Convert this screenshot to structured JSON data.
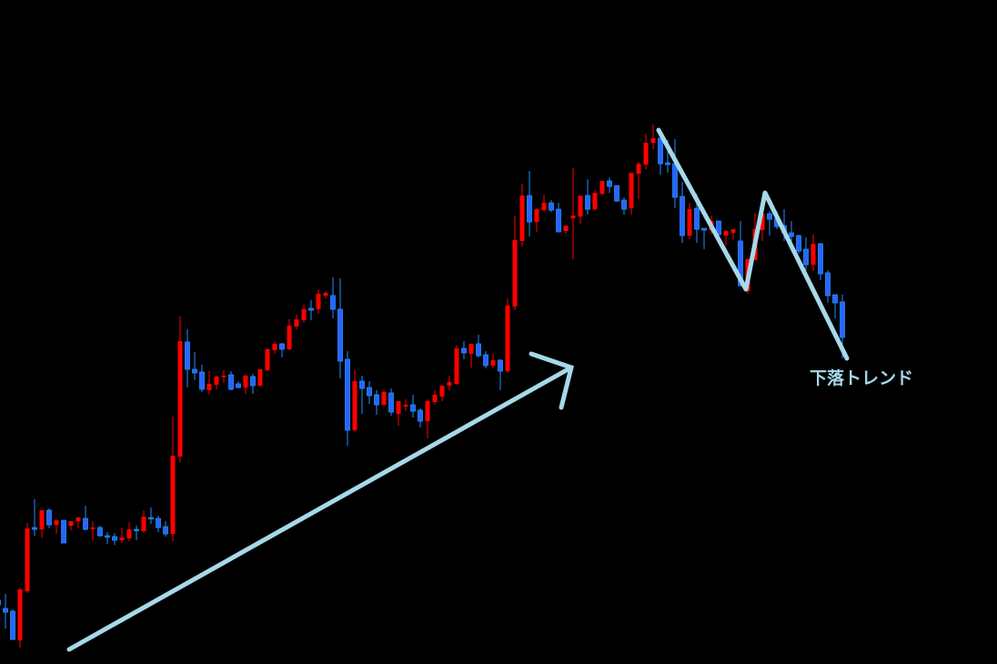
{
  "chart_data": {
    "type": "candlestick",
    "title": "",
    "xlabel": "",
    "ylabel": "",
    "grid": false,
    "background": "#000000",
    "colors": {
      "up": "#ff0000",
      "down_fill": "#2a63ff",
      "down_edge": "#1e90ff",
      "annotation": "#a6d9e8"
    },
    "ohlc_fields": [
      "open",
      "high",
      "low",
      "close"
    ],
    "candles": [
      [
        70,
        77,
        60,
        65
      ],
      [
        61,
        77,
        39,
        57
      ],
      [
        58,
        60,
        27,
        27
      ],
      [
        26,
        84,
        18,
        82
      ],
      [
        80,
        155,
        78,
        149
      ],
      [
        150,
        181,
        141,
        148
      ],
      [
        148,
        169,
        139,
        169
      ],
      [
        169,
        171,
        149,
        153
      ],
      [
        153,
        158,
        143,
        158
      ],
      [
        158,
        158,
        133,
        133
      ],
      [
        152,
        157,
        147,
        157
      ],
      [
        157,
        162,
        149,
        161
      ],
      [
        160,
        174,
        147,
        148
      ],
      [
        149,
        157,
        136,
        150
      ],
      [
        150,
        152,
        140,
        141
      ],
      [
        141,
        145,
        132,
        140
      ],
      [
        140,
        144,
        131,
        136
      ],
      [
        136,
        150,
        133,
        139
      ],
      [
        138,
        156,
        135,
        148
      ],
      [
        148,
        152,
        136,
        147
      ],
      [
        146,
        169,
        144,
        162
      ],
      [
        161,
        172,
        154,
        160
      ],
      [
        160,
        163,
        145,
        150
      ],
      [
        151,
        157,
        140,
        143
      ],
      [
        143,
        272,
        135,
        229
      ],
      [
        228,
        382,
        222,
        355
      ],
      [
        354,
        368,
        304,
        324
      ],
      [
        324,
        343,
        312,
        320
      ],
      [
        321,
        329,
        299,
        302
      ],
      [
        301,
        322,
        296,
        308
      ],
      [
        307,
        317,
        302,
        316
      ],
      [
        316,
        323,
        309,
        317
      ],
      [
        318,
        322,
        301,
        302
      ],
      [
        308,
        311,
        303,
        304
      ],
      [
        304,
        318,
        297,
        317
      ],
      [
        316,
        319,
        297,
        306
      ],
      [
        306,
        324,
        305,
        324
      ],
      [
        323,
        347,
        322,
        346
      ],
      [
        345,
        355,
        341,
        352
      ],
      [
        352,
        353,
        337,
        346
      ],
      [
        346,
        379,
        345,
        372
      ],
      [
        371,
        384,
        368,
        379
      ],
      [
        378,
        395,
        375,
        390
      ],
      [
        391,
        400,
        378,
        389
      ],
      [
        390,
        412,
        385,
        407
      ],
      [
        405,
        410,
        402,
        408
      ],
      [
        405,
        425,
        380,
        390
      ],
      [
        390,
        424,
        314,
        333
      ],
      [
        335,
        344,
        240,
        257
      ],
      [
        257,
        323,
        255,
        311
      ],
      [
        311,
        317,
        275,
        303
      ],
      [
        304,
        311,
        286,
        295
      ],
      [
        296,
        301,
        274,
        285
      ],
      [
        285,
        301,
        284,
        299
      ],
      [
        298,
        303,
        273,
        277
      ],
      [
        275,
        289,
        262,
        289
      ],
      [
        283,
        291,
        278,
        285
      ],
      [
        285,
        296,
        271,
        278
      ],
      [
        279,
        281,
        260,
        267
      ],
      [
        267,
        291,
        248,
        289
      ],
      [
        288,
        301,
        285,
        296
      ],
      [
        294,
        306,
        289,
        306
      ],
      [
        306,
        317,
        301,
        310
      ],
      [
        308,
        350,
        307,
        347
      ],
      [
        347,
        355,
        335,
        342
      ],
      [
        341,
        352,
        326,
        352
      ],
      [
        352,
        362,
        337,
        339
      ],
      [
        340,
        344,
        325,
        328
      ],
      [
        328,
        341,
        325,
        334
      ],
      [
        334,
        335,
        301,
        322
      ],
      [
        322,
        402,
        320,
        394
      ],
      [
        393,
        493,
        389,
        466
      ],
      [
        465,
        528,
        459,
        515
      ],
      [
        515,
        542,
        470,
        486
      ],
      [
        486,
        501,
        475,
        500
      ],
      [
        499,
        516,
        497,
        507
      ],
      [
        507,
        510,
        497,
        499
      ],
      [
        500,
        507,
        475,
        475
      ],
      [
        476,
        482,
        473,
        482
      ],
      [
        490,
        545,
        445,
        493
      ],
      [
        492,
        515,
        484,
        515
      ],
      [
        515,
        533,
        494,
        500
      ],
      [
        500,
        521,
        498,
        518
      ],
      [
        517,
        531,
        516,
        531
      ],
      [
        531,
        535,
        518,
        525
      ],
      [
        526,
        526,
        508,
        509
      ],
      [
        510,
        513,
        494,
        500
      ],
      [
        501,
        540,
        494,
        540
      ],
      [
        539,
        552,
        511,
        550
      ],
      [
        549,
        583,
        544,
        573
      ],
      [
        573,
        593,
        566,
        578
      ],
      [
        578,
        588,
        538,
        550
      ],
      [
        551,
        576,
        540,
        549
      ],
      [
        550,
        577,
        501,
        513
      ],
      [
        514,
        530,
        463,
        471
      ],
      [
        471,
        507,
        467,
        500
      ],
      [
        501,
        517,
        463,
        478
      ],
      [
        479,
        479,
        456,
        477
      ],
      [
        477,
        493,
        473,
        487
      ],
      [
        487,
        487,
        470,
        472
      ],
      [
        471,
        477,
        460,
        476
      ],
      [
        474,
        478,
        467,
        478
      ],
      [
        465,
        487,
        415,
        416
      ],
      [
        410,
        446,
        407,
        445
      ],
      [
        444,
        496,
        444,
        478
      ],
      [
        477,
        496,
        465,
        495
      ],
      [
        495,
        498,
        471,
        489
      ],
      [
        489,
        498,
        478,
        481
      ],
      [
        482,
        500,
        465,
        474
      ],
      [
        474,
        487,
        463,
        470
      ],
      [
        471,
        472,
        451,
        454
      ],
      [
        456,
        469,
        433,
        439
      ],
      [
        439,
        472,
        432,
        462
      ],
      [
        462,
        463,
        422,
        429
      ],
      [
        430,
        433,
        397,
        405
      ],
      [
        406,
        406,
        380,
        397
      ],
      [
        398,
        406,
        336,
        359
      ]
    ],
    "annotations": {
      "uptrend_arrow": "arrow",
      "downtrend_zigzag": "line",
      "downtrend_label": "下落トレンド"
    }
  }
}
